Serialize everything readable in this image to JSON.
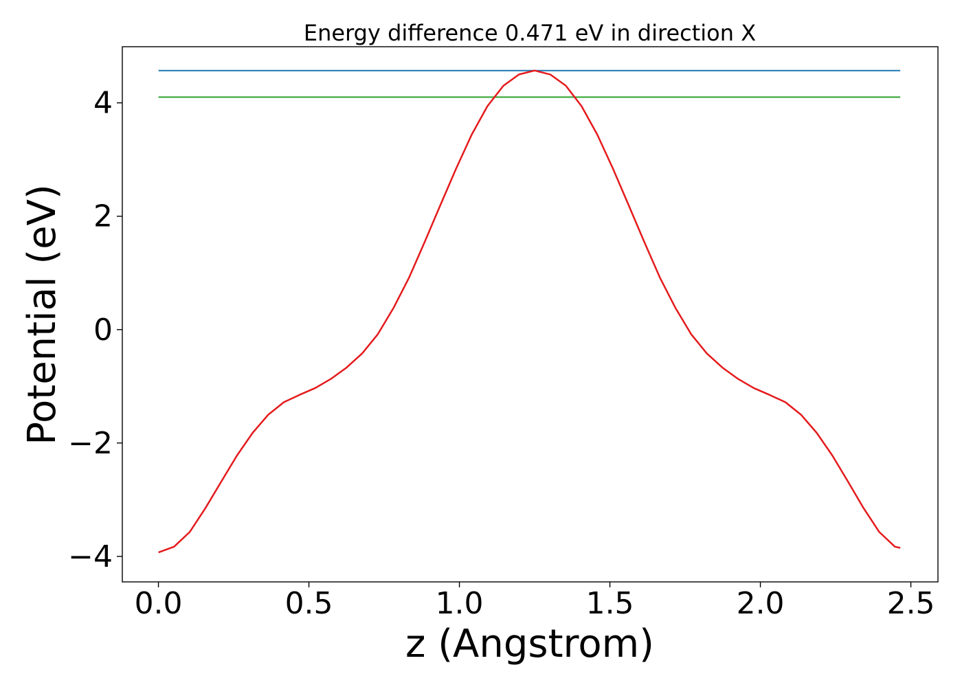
{
  "chart_data": {
    "type": "line",
    "title": "Energy difference 0.471 eV in direction X",
    "xlabel": "z (Angstrom)",
    "ylabel": "Potential (eV)",
    "xlim": [
      -0.12,
      2.59
    ],
    "ylim": [
      -4.45,
      4.99
    ],
    "x_ticks": [
      0.0,
      0.5,
      1.0,
      1.5,
      2.0,
      2.5
    ],
    "x_tick_labels": [
      "0.0",
      "0.5",
      "1.0",
      "1.5",
      "2.0",
      "2.5"
    ],
    "y_ticks": [
      -4,
      -2,
      0,
      2,
      4
    ],
    "y_tick_labels": [
      "−4",
      "−2",
      "0",
      "2",
      "4"
    ],
    "grid": false,
    "legend": "none",
    "series": [
      {
        "color": "#1f77b4",
        "x": [
          0.0,
          2.465
        ],
        "y": [
          4.57,
          4.57
        ]
      },
      {
        "color": "#2ca02c",
        "x": [
          0.0,
          2.465
        ],
        "y": [
          4.1,
          4.1
        ]
      },
      {
        "color": "#e41a1c",
        "x": [
          0.0,
          0.052,
          0.104,
          0.156,
          0.209,
          0.261,
          0.313,
          0.365,
          0.417,
          0.469,
          0.521,
          0.573,
          0.625,
          0.677,
          0.729,
          0.781,
          0.833,
          0.885,
          0.937,
          0.989,
          1.041,
          1.093,
          1.146,
          1.198,
          1.25,
          1.302,
          1.354,
          1.406,
          1.458,
          1.51,
          1.562,
          1.614,
          1.666,
          1.718,
          1.77,
          1.822,
          1.874,
          1.926,
          1.978,
          2.03,
          2.083,
          2.135,
          2.187,
          2.239,
          2.291,
          2.343,
          2.395,
          2.447,
          2.465
        ],
        "y": [
          -3.93,
          -3.83,
          -3.57,
          -3.15,
          -2.68,
          -2.22,
          -1.82,
          -1.5,
          -1.28,
          -1.15,
          -1.03,
          -0.87,
          -0.67,
          -0.42,
          -0.08,
          0.38,
          0.92,
          1.55,
          2.2,
          2.84,
          3.44,
          3.94,
          4.3,
          4.5,
          4.57,
          4.5,
          4.3,
          3.94,
          3.44,
          2.84,
          2.2,
          1.55,
          0.92,
          0.38,
          -0.08,
          -0.42,
          -0.67,
          -0.87,
          -1.03,
          -1.15,
          -1.28,
          -1.5,
          -1.82,
          -2.22,
          -2.68,
          -3.15,
          -3.57,
          -3.83,
          -3.85
        ]
      }
    ]
  }
}
